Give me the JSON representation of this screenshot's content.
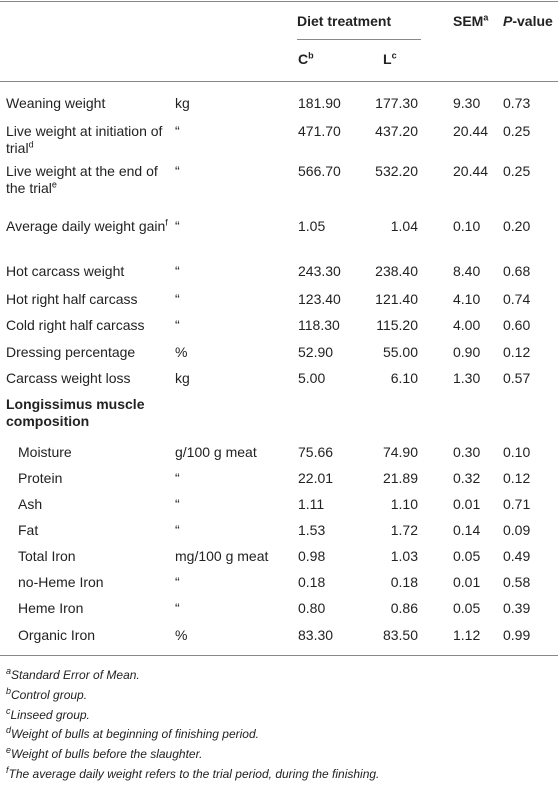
{
  "header": {
    "group": "Diet treatment",
    "columns": [
      {
        "text": "C",
        "note": "b"
      },
      {
        "text": "L",
        "note": "c"
      }
    ],
    "sem": {
      "text": "SEM",
      "note": "a"
    },
    "p": "P-value"
  },
  "rows": [
    {
      "label": "Weaning weight",
      "unit": "kg",
      "c": "181.90",
      "l": "177.30",
      "sem": "9.30",
      "p": "0.73"
    },
    {
      "label": "Live weight at initiation of trial",
      "note": "d",
      "unit": "“",
      "c": "471.70",
      "l": "437.20",
      "sem": "20.44",
      "p": "0.25"
    },
    {
      "label": "Live weight at the end of the trial",
      "note": "e",
      "unit": "“",
      "c": "566.70",
      "l": "532.20",
      "sem": "20.44",
      "p": "0.25"
    },
    {
      "label": "Average daily weight gain",
      "note": "f",
      "unit": "“",
      "c": "1.05",
      "l": "1.04",
      "sem": "0.10",
      "p": "0.20"
    },
    {
      "label": "Hot carcass weight",
      "unit": "“",
      "c": "243.30",
      "l": "238.40",
      "sem": "8.40",
      "p": "0.68"
    },
    {
      "label": "Hot right half carcass",
      "unit": "“",
      "c": "123.40",
      "l": "121.40",
      "sem": "4.10",
      "p": "0.74"
    },
    {
      "label": "Cold right half carcass",
      "unit": "“",
      "c": "118.30",
      "l": "115.20",
      "sem": "4.00",
      "p": "0.60"
    },
    {
      "label": "Dressing percentage",
      "unit": "%",
      "c": "52.90",
      "l": "55.00",
      "sem": "0.90",
      "p": "0.12"
    },
    {
      "label": "Carcass weight loss",
      "unit": "kg",
      "c": "5.00",
      "l": "6.10",
      "sem": "1.30",
      "p": "0.57"
    }
  ],
  "section": {
    "title": "Longissimus muscle composition",
    "rows": [
      {
        "label": "Moisture",
        "unit": "g/100 g meat",
        "c": "75.66",
        "l": "74.90",
        "sem": "0.30",
        "p": "0.10"
      },
      {
        "label": "Protein",
        "unit": "“",
        "c": "22.01",
        "l": "21.89",
        "sem": "0.32",
        "p": "0.12"
      },
      {
        "label": "Ash",
        "unit": "“",
        "c": "1.11",
        "l": "1.10",
        "sem": "0.01",
        "p": "0.71"
      },
      {
        "label": "Fat",
        "unit": "“",
        "c": "1.53",
        "l": "1.72",
        "sem": "0.14",
        "p": "0.09"
      },
      {
        "label": "Total Iron",
        "unit": "mg/100 g meat",
        "c": "0.98",
        "l": "1.03",
        "sem": "0.05",
        "p": "0.49"
      },
      {
        "label": "no-Heme Iron",
        "unit": "“",
        "c": "0.18",
        "l": "0.18",
        "sem": "0.01",
        "p": "0.58"
      },
      {
        "label": "Heme Iron",
        "unit": "“",
        "c": "0.80",
        "l": "0.86",
        "sem": "0.05",
        "p": "0.39"
      },
      {
        "label": "Organic Iron",
        "unit": "%",
        "c": "83.30",
        "l": "83.50",
        "sem": "1.12",
        "p": "0.99"
      }
    ]
  },
  "footnotes": [
    {
      "mark": "a",
      "text": "Standard Error of Mean."
    },
    {
      "mark": "b",
      "text": "Control group."
    },
    {
      "mark": "c",
      "text": "Linseed group."
    },
    {
      "mark": "d",
      "text": "Weight of bulls at beginning of finishing period."
    },
    {
      "mark": "e",
      "text": "Weight of bulls before the slaughter."
    },
    {
      "mark": "f",
      "text": "The average daily weight refers to the trial period, during the finishing."
    }
  ]
}
